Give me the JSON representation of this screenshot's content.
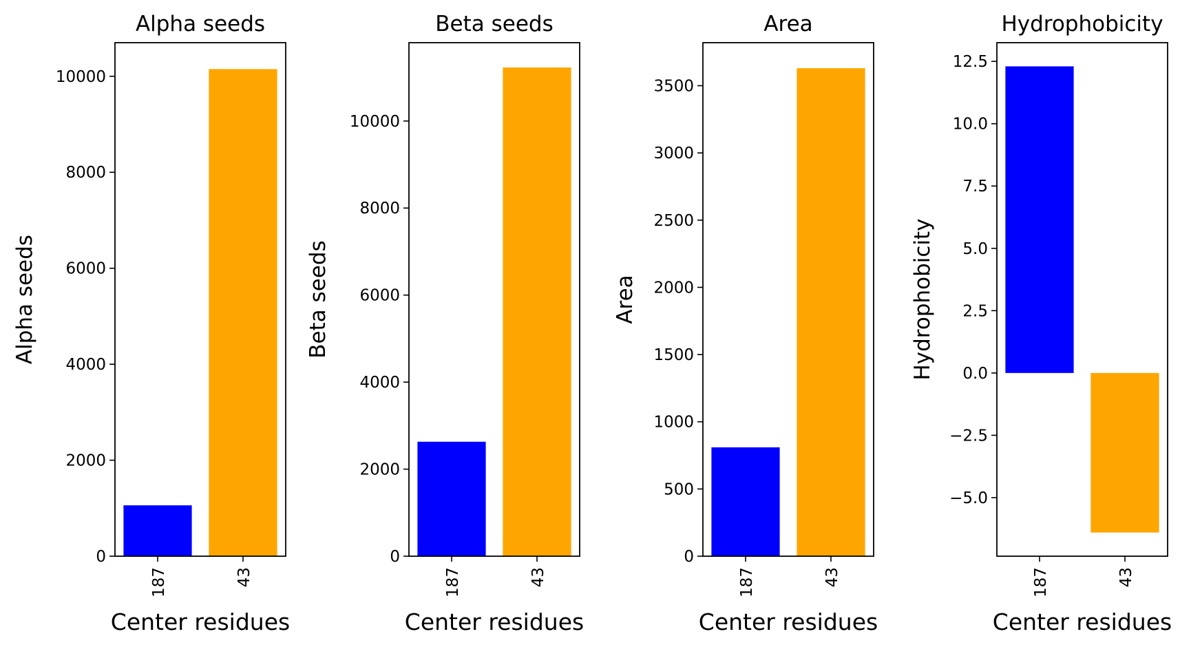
{
  "colors": {
    "series_187": "#0000ff",
    "series_43": "#ffa500"
  },
  "chart_data": [
    {
      "type": "bar",
      "title": "Alpha seeds",
      "xlabel": "Center residues",
      "ylabel": "Alpha seeds",
      "categories": [
        "187",
        "43"
      ],
      "values": [
        1060,
        10150
      ],
      "bar_colors": [
        "#0000ff",
        "#ffa500"
      ],
      "ylim": [
        0,
        10700
      ],
      "yticks": [
        0,
        2000,
        4000,
        6000,
        8000,
        10000
      ],
      "ytick_labels": [
        "0",
        "2000",
        "4000",
        "6000",
        "8000",
        "10000"
      ]
    },
    {
      "type": "bar",
      "title": "Beta seeds",
      "xlabel": "Center residues",
      "ylabel": "Beta seeds",
      "categories": [
        "187",
        "43"
      ],
      "values": [
        2630,
        11230
      ],
      "bar_colors": [
        "#0000ff",
        "#ffa500"
      ],
      "ylim": [
        0,
        11800
      ],
      "yticks": [
        0,
        2000,
        4000,
        6000,
        8000,
        10000
      ],
      "ytick_labels": [
        "0",
        "2000",
        "4000",
        "6000",
        "8000",
        "10000"
      ]
    },
    {
      "type": "bar",
      "title": "Area",
      "xlabel": "Center residues",
      "ylabel": "Area",
      "categories": [
        "187",
        "43"
      ],
      "values": [
        810,
        3630
      ],
      "bar_colors": [
        "#0000ff",
        "#ffa500"
      ],
      "ylim": [
        0,
        3820
      ],
      "yticks": [
        0,
        500,
        1000,
        1500,
        2000,
        2500,
        3000,
        3500
      ],
      "ytick_labels": [
        "0",
        "500",
        "1000",
        "1500",
        "2000",
        "2500",
        "3000",
        "3500"
      ]
    },
    {
      "type": "bar",
      "title": "Hydrophobicity",
      "xlabel": "Center residues",
      "ylabel": "Hydrophobicity",
      "categories": [
        "187",
        "43"
      ],
      "values": [
        12.3,
        -6.4
      ],
      "bar_colors": [
        "#0000ff",
        "#ffa500"
      ],
      "ylim": [
        -7.35,
        13.25
      ],
      "yticks": [
        -5.0,
        -2.5,
        0.0,
        2.5,
        5.0,
        7.5,
        10.0,
        12.5
      ],
      "ytick_labels": [
        "−5.0",
        "−2.5",
        "0.0",
        "2.5",
        "5.0",
        "7.5",
        "10.0",
        "12.5"
      ]
    }
  ]
}
